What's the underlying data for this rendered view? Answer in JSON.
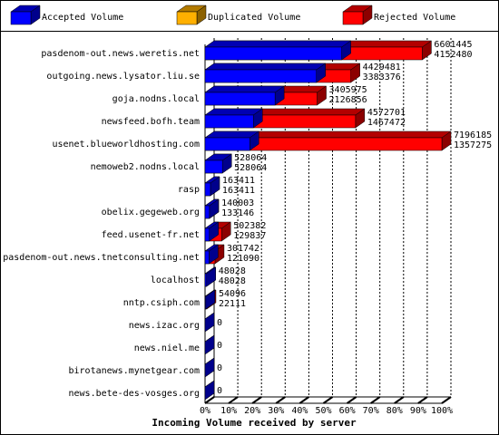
{
  "chart_data": {
    "type": "bar3d",
    "orientation": "horizontal",
    "title": "Incoming Volume received by server",
    "categories": [
      "pasdenom-out.news.weretis.net",
      "outgoing.news.lysator.liu.se",
      "goja.nodns.local",
      "newsfeed.bofh.team",
      "usenet.blueworldhosting.com",
      "nemoweb2.nodns.local",
      "rasp",
      "obelix.gegeweb.org",
      "feed.usenet-fr.net",
      "pasdenom-out.news.tnetconsulting.net",
      "localhost",
      "nntp.csiph.com",
      "news.izac.org",
      "news.niel.me",
      "birotanews.mynetgear.com",
      "news.bete-des-vosges.org"
    ],
    "series": [
      {
        "name": "Accepted Volume",
        "color": "#0000ff",
        "values": [
          4152480,
          3383376,
          2126856,
          1467472,
          1357275,
          528064,
          163411,
          133146,
          129837,
          121090,
          48028,
          22111,
          0,
          0,
          0,
          0
        ]
      },
      {
        "name": "Duplicated Volume",
        "color": "#ffb000",
        "values": [
          null,
          null,
          null,
          null,
          null,
          null,
          null,
          null,
          null,
          null,
          null,
          null,
          null,
          null,
          null,
          null
        ]
      },
      {
        "name": "Rejected Volume",
        "color": "#ff0000",
        "values": [
          6601445,
          4429481,
          3405975,
          4572701,
          7196185,
          528064,
          163411,
          140003,
          502382,
          301742,
          48028,
          54096,
          0,
          0,
          0,
          0
        ]
      }
    ],
    "xlim": [
      0,
      7196185
    ],
    "xticks": [
      {
        "value": 0,
        "label": "0%"
      },
      {
        "value": 719618.5,
        "label": "10%"
      },
      {
        "value": 1439237,
        "label": "20%"
      },
      {
        "value": 2158855.5,
        "label": "30%"
      },
      {
        "value": 2878474,
        "label": "40%"
      },
      {
        "value": 3598092.5,
        "label": "50%"
      },
      {
        "value": 4317711,
        "label": "60%"
      },
      {
        "value": 5037329.5,
        "label": "70%"
      },
      {
        "value": 5756948,
        "label": "80%"
      },
      {
        "value": 6476566.5,
        "label": "90%"
      },
      {
        "value": 7196185,
        "label": "100%"
      }
    ],
    "grid": true
  }
}
